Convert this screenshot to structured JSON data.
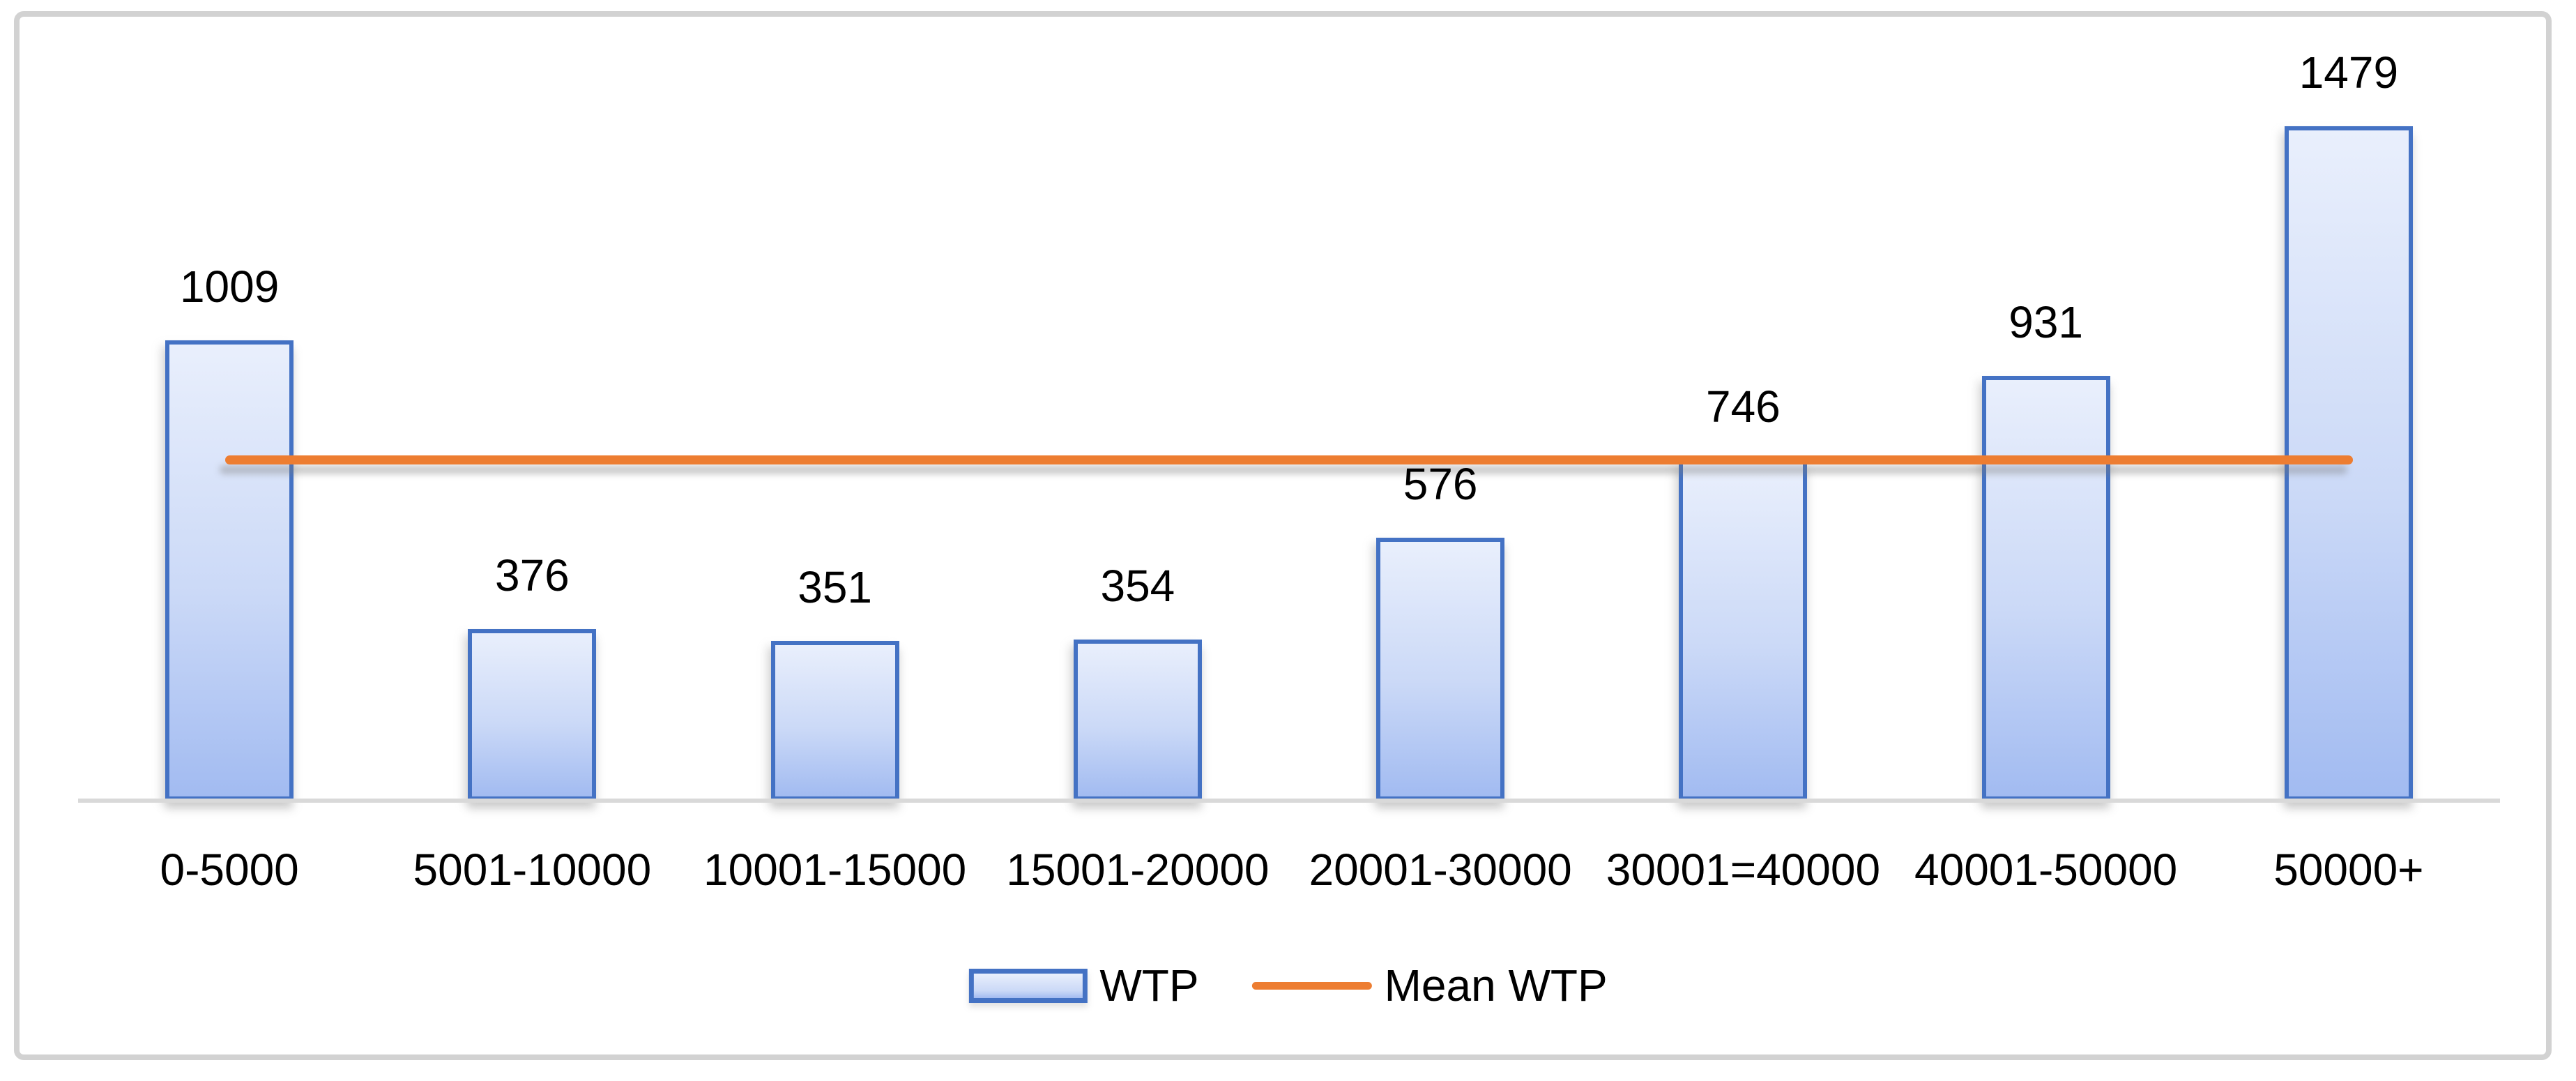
{
  "figure": {
    "background": "#FFFFFF",
    "frame_border_color": "#D2D2D2"
  },
  "chart_data": {
    "type": "bar",
    "title": "",
    "xlabel": "",
    "ylabel": "",
    "categories": [
      "0-5000",
      "5001-10000",
      "10001-15000",
      "15001-20000",
      "20001-30000",
      "30001=40000",
      "40001-50000",
      "50000+"
    ],
    "series": [
      {
        "name": "WTP",
        "type": "bar",
        "values": [
          1009,
          376,
          351,
          354,
          576,
          746,
          931,
          1479
        ]
      },
      {
        "name": "Mean WTP",
        "type": "line",
        "value_estimate": 748,
        "note": "horizontal mean line spanning first to last category center; value not labeled on chart"
      }
    ],
    "data_labels_shown": true,
    "ylim": [
      0,
      1600
    ],
    "grid": false,
    "y_axis_visible": false,
    "legend_position": "bottom-center",
    "colors": {
      "bar_border": "#4472C4",
      "bar_fill_top": "#E9EFFC",
      "bar_fill_mid": "#CBD9F7",
      "bar_fill_bottom": "#A2BBF1",
      "mean_line": "#ED7D31",
      "axis_line": "#D9D9D9",
      "label_text": "#000000",
      "frame_border": "#D2D2D2"
    }
  },
  "legend": {
    "items": [
      {
        "label": "WTP",
        "marker": "bar-swatch"
      },
      {
        "label": "Mean WTP",
        "marker": "line-swatch"
      }
    ]
  }
}
